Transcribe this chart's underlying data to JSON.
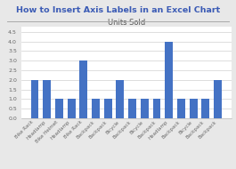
{
  "title": "How to Insert Axis Labels in an Excel Chart",
  "chart_title": "Units Sold",
  "categories": [
    "Bike Rack",
    "Headlamp",
    "Bike Helmet",
    "Headlamp",
    "Bike Rack",
    "Backpack",
    "Backpack",
    "Bicycle",
    "Backpack",
    "Bicycle",
    "Backpack",
    "Headlamp",
    "Backpack",
    "Bicycle",
    "Backpack",
    "Backpack"
  ],
  "values": [
    2,
    2,
    1,
    1,
    3,
    1,
    1,
    2,
    1,
    1,
    1,
    4,
    1,
    1,
    1,
    2
  ],
  "bar_color": "#4472C4",
  "ylim": [
    0,
    4.75
  ],
  "yticks": [
    0,
    0.5,
    1,
    1.5,
    2,
    2.5,
    3,
    3.5,
    4,
    4.5
  ],
  "title_color": "#3B5BB5",
  "title_fontsize": 6.8,
  "chart_title_fontsize": 6.0,
  "chart_bg": "#FFFFFF",
  "outer_bg": "#E8E8E8",
  "grid_color": "#D0D0D0",
  "tick_label_fontsize": 4.0,
  "ytick_label_fontsize": 4.5
}
